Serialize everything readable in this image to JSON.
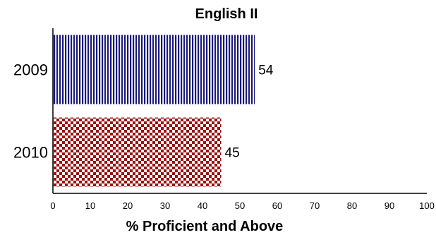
{
  "chart_data": {
    "type": "bar",
    "orientation": "horizontal",
    "title": "English II",
    "xlabel": "% Proficient and Above",
    "ylabel": "",
    "xlim": [
      0,
      100
    ],
    "xticks": [
      0,
      10,
      20,
      30,
      40,
      50,
      60,
      70,
      80,
      90,
      100
    ],
    "categories": [
      "2009",
      "2010"
    ],
    "values": [
      54,
      45
    ],
    "data_labels": [
      "54",
      "45"
    ],
    "bar_styles": [
      {
        "pattern": "vertical-stripes",
        "color": "#1a1a7a"
      },
      {
        "pattern": "checkerboard",
        "color": "#9b1010"
      }
    ],
    "grid": false,
    "legend": "none"
  }
}
